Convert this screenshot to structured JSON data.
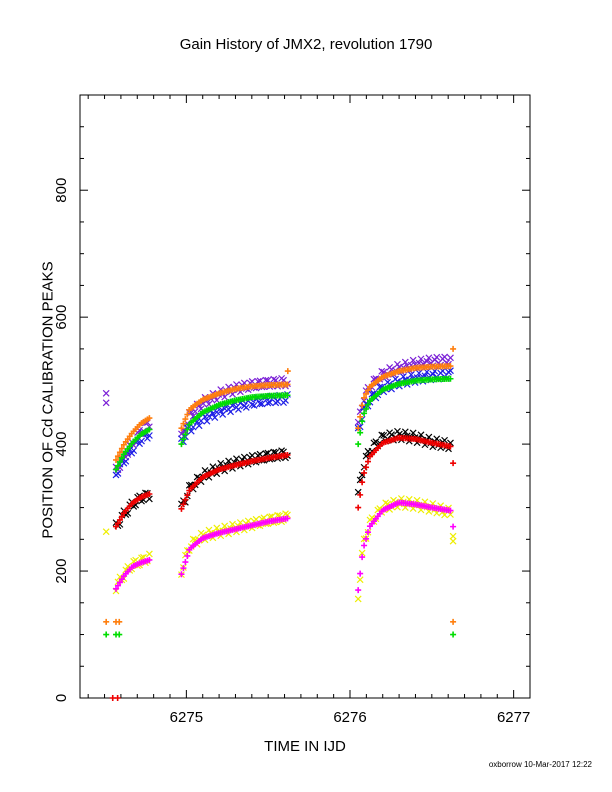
{
  "chart_data": {
    "type": "scatter",
    "title": "Gain History of JMX2, revolution 1790",
    "xlabel": "TIME IN IJD",
    "ylabel": "POSITION OF Cd CALIBRATION PEAKS",
    "xlim": [
      6274.35,
      6277.1
    ],
    "ylim": [
      0,
      950
    ],
    "x_ticks": [
      "6275",
      "6276",
      "6277"
    ],
    "x_tick_values": [
      6275,
      6276,
      6277
    ],
    "y_ticks": [
      "0",
      "200",
      "400",
      "600",
      "800"
    ],
    "y_tick_values": [
      0,
      200,
      400,
      600,
      800
    ],
    "grid": false,
    "legend": "none",
    "segments": [
      [
        6274.57,
        6274.78
      ],
      [
        6274.97,
        6275.62
      ],
      [
        6276.05,
        6276.62
      ]
    ],
    "series": [
      {
        "color": "#7a1fd6",
        "marker": "x",
        "points": [
          [
            6274.57,
            358
          ],
          [
            6274.62,
            380
          ],
          [
            6274.67,
            400
          ],
          [
            6274.72,
            420
          ],
          [
            6274.78,
            435
          ],
          [
            6274.97,
            410
          ],
          [
            6275.02,
            445
          ],
          [
            6275.1,
            465
          ],
          [
            6275.2,
            478
          ],
          [
            6275.3,
            487
          ],
          [
            6275.4,
            493
          ],
          [
            6275.5,
            496
          ],
          [
            6275.62,
            498
          ],
          [
            6276.05,
            430
          ],
          [
            6276.08,
            470
          ],
          [
            6276.12,
            490
          ],
          [
            6276.2,
            510
          ],
          [
            6276.3,
            520
          ],
          [
            6276.4,
            526
          ],
          [
            6276.5,
            530
          ],
          [
            6276.62,
            532
          ]
        ]
      },
      {
        "color": "#1e1ee6",
        "marker": "x",
        "points": [
          [
            6274.57,
            355
          ],
          [
            6274.62,
            375
          ],
          [
            6274.67,
            392
          ],
          [
            6274.72,
            408
          ],
          [
            6274.78,
            418
          ],
          [
            6274.97,
            405
          ],
          [
            6275.02,
            425
          ],
          [
            6275.1,
            440
          ],
          [
            6275.2,
            452
          ],
          [
            6275.3,
            460
          ],
          [
            6275.4,
            466
          ],
          [
            6275.5,
            470
          ],
          [
            6275.62,
            472
          ],
          [
            6276.05,
            420
          ],
          [
            6276.08,
            450
          ],
          [
            6276.12,
            470
          ],
          [
            6276.2,
            488
          ],
          [
            6276.3,
            498
          ],
          [
            6276.4,
            504
          ],
          [
            6276.5,
            508
          ],
          [
            6276.62,
            510
          ]
        ]
      },
      {
        "color": "#ff7f0e",
        "marker": "+",
        "points": [
          [
            6274.57,
            375
          ],
          [
            6274.62,
            400
          ],
          [
            6274.67,
            418
          ],
          [
            6274.72,
            432
          ],
          [
            6274.78,
            442
          ],
          [
            6274.97,
            425
          ],
          [
            6275.02,
            455
          ],
          [
            6275.1,
            470
          ],
          [
            6275.2,
            480
          ],
          [
            6275.3,
            487
          ],
          [
            6275.4,
            491
          ],
          [
            6275.5,
            493
          ],
          [
            6275.62,
            494
          ],
          [
            6276.05,
            425
          ],
          [
            6276.08,
            470
          ],
          [
            6276.12,
            490
          ],
          [
            6276.2,
            506
          ],
          [
            6276.3,
            515
          ],
          [
            6276.4,
            520
          ],
          [
            6276.5,
            522
          ],
          [
            6276.62,
            523
          ]
        ]
      },
      {
        "color": "#00dd00",
        "marker": "+",
        "points": [
          [
            6274.57,
            360
          ],
          [
            6274.62,
            385
          ],
          [
            6274.67,
            402
          ],
          [
            6274.72,
            415
          ],
          [
            6274.78,
            424
          ],
          [
            6274.97,
            400
          ],
          [
            6275.02,
            432
          ],
          [
            6275.1,
            450
          ],
          [
            6275.2,
            462
          ],
          [
            6275.3,
            469
          ],
          [
            6275.4,
            474
          ],
          [
            6275.5,
            476
          ],
          [
            6275.62,
            477
          ],
          [
            6276.05,
            400
          ],
          [
            6276.08,
            445
          ],
          [
            6276.12,
            468
          ],
          [
            6276.2,
            486
          ],
          [
            6276.3,
            495
          ],
          [
            6276.4,
            500
          ],
          [
            6276.5,
            502
          ],
          [
            6276.62,
            503
          ]
        ]
      },
      {
        "color": "#000000",
        "marker": "x",
        "points": [
          [
            6274.57,
            270
          ],
          [
            6274.62,
            290
          ],
          [
            6274.67,
            305
          ],
          [
            6274.72,
            315
          ],
          [
            6274.78,
            320
          ],
          [
            6274.97,
            300
          ],
          [
            6275.02,
            330
          ],
          [
            6275.1,
            350
          ],
          [
            6275.2,
            362
          ],
          [
            6275.3,
            370
          ],
          [
            6275.4,
            376
          ],
          [
            6275.5,
            381
          ],
          [
            6275.62,
            385
          ],
          [
            6276.05,
            320
          ],
          [
            6276.08,
            365
          ],
          [
            6276.12,
            390
          ],
          [
            6276.2,
            410
          ],
          [
            6276.3,
            414
          ],
          [
            6276.4,
            410
          ],
          [
            6276.5,
            403
          ],
          [
            6276.62,
            398
          ]
        ]
      },
      {
        "color": "#ee0000",
        "marker": "+",
        "points": [
          [
            6274.57,
            270
          ],
          [
            6274.62,
            292
          ],
          [
            6274.67,
            307
          ],
          [
            6274.72,
            316
          ],
          [
            6274.78,
            322
          ],
          [
            6274.97,
            298
          ],
          [
            6275.02,
            328
          ],
          [
            6275.1,
            348
          ],
          [
            6275.2,
            360
          ],
          [
            6275.3,
            367
          ],
          [
            6275.4,
            373
          ],
          [
            6275.5,
            378
          ],
          [
            6275.62,
            383
          ],
          [
            6276.05,
            300
          ],
          [
            6276.08,
            350
          ],
          [
            6276.12,
            380
          ],
          [
            6276.2,
            402
          ],
          [
            6276.3,
            410
          ],
          [
            6276.4,
            408
          ],
          [
            6276.5,
            402
          ],
          [
            6276.62,
            396
          ]
        ]
      },
      {
        "color": "#eeee00",
        "marker": "x",
        "points": [
          [
            6274.57,
            175
          ],
          [
            6274.62,
            195
          ],
          [
            6274.67,
            210
          ],
          [
            6274.72,
            215
          ],
          [
            6274.78,
            222
          ],
          [
            6274.97,
            200
          ],
          [
            6275.02,
            240
          ],
          [
            6275.1,
            255
          ],
          [
            6275.2,
            262
          ],
          [
            6275.3,
            268
          ],
          [
            6275.4,
            274
          ],
          [
            6275.5,
            280
          ],
          [
            6275.62,
            285
          ],
          [
            6276.05,
            160
          ],
          [
            6276.08,
            240
          ],
          [
            6276.12,
            275
          ],
          [
            6276.2,
            300
          ],
          [
            6276.3,
            308
          ],
          [
            6276.4,
            305
          ],
          [
            6276.5,
            300
          ],
          [
            6276.62,
            292
          ]
        ]
      },
      {
        "color": "#ff00ff",
        "marker": "+",
        "points": [
          [
            6274.57,
            172
          ],
          [
            6274.62,
            193
          ],
          [
            6274.67,
            207
          ],
          [
            6274.72,
            213
          ],
          [
            6274.78,
            218
          ],
          [
            6274.97,
            195
          ],
          [
            6275.02,
            235
          ],
          [
            6275.1,
            252
          ],
          [
            6275.2,
            260
          ],
          [
            6275.3,
            266
          ],
          [
            6275.4,
            272
          ],
          [
            6275.5,
            278
          ],
          [
            6275.62,
            283
          ],
          [
            6276.05,
            170
          ],
          [
            6276.08,
            235
          ],
          [
            6276.12,
            270
          ],
          [
            6276.2,
            296
          ],
          [
            6276.3,
            308
          ],
          [
            6276.4,
            305
          ],
          [
            6276.5,
            300
          ],
          [
            6276.62,
            295
          ]
        ]
      }
    ],
    "outliers": [
      {
        "color": "#ff7f0e",
        "marker": "+",
        "points": [
          [
            6274.51,
            120
          ],
          [
            6274.57,
            120
          ],
          [
            6274.59,
            120
          ],
          [
            6276.63,
            120
          ]
        ]
      },
      {
        "color": "#00dd00",
        "marker": "+",
        "points": [
          [
            6274.51,
            100
          ],
          [
            6274.57,
            100
          ],
          [
            6274.59,
            100
          ],
          [
            6276.63,
            100
          ]
        ]
      },
      {
        "color": "#7a1fd6",
        "marker": "x",
        "points": [
          [
            6274.51,
            480
          ],
          [
            6274.51,
            465
          ]
        ]
      },
      {
        "color": "#ff7f0e",
        "marker": "+",
        "points": [
          [
            6275.62,
            515
          ],
          [
            6276.63,
            550
          ]
        ]
      },
      {
        "color": "#ee0000",
        "marker": "+",
        "points": [
          [
            6276.63,
            370
          ],
          [
            6274.55,
            0
          ],
          [
            6274.58,
            0
          ]
        ]
      },
      {
        "color": "#eeee00",
        "marker": "x",
        "points": [
          [
            6274.51,
            262
          ],
          [
            6276.63,
            247
          ],
          [
            6276.63,
            255
          ]
        ]
      },
      {
        "color": "#ff00ff",
        "marker": "+",
        "points": [
          [
            6276.63,
            270
          ]
        ]
      }
    ]
  },
  "footer": {
    "stamp": "oxborrow 10-Mar-2017 12:22"
  }
}
